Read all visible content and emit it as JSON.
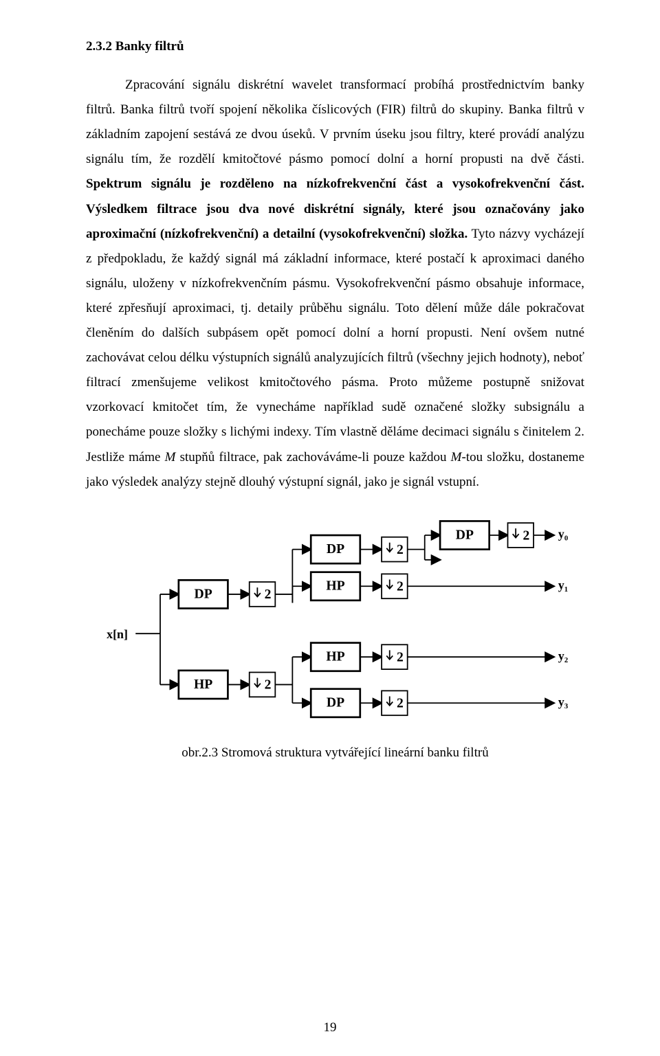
{
  "page": {
    "number": "19"
  },
  "section": {
    "heading": "2.3.2 Banky filtrů",
    "body_html": "Zpracování signálu diskrétní wavelet transformací probíhá prostřednictvím banky filtrů. Banka filtrů tvoří spojení několika číslicových (FIR) filtrů do skupiny. Banka filtrů v základním zapojení sestává ze dvou úseků. V prvním úseku jsou filtry, které provádí analýzu signálu tím, že rozdělí kmitočtové pásmo pomocí dolní a horní propusti na dvě části. <span class=\"bold\">Spektrum signálu je rozděleno na nízkofrekvenční část a vysokofrekvenční část. Výsledkem filtrace jsou dva nové diskrétní signály, které jsou označovány jako aproximační (nízkofrekvenční) a detailní (vysokofrekvenční) složka.</span> Tyto názvy vycházejí z předpokladu, že každý signál má základní informace, které postačí k aproximaci daného signálu, uloženy v nízkofrekvenčním pásmu. Vysokofrekvenční pásmo obsahuje informace, které zpřesňují aproximaci, tj. detaily průběhu signálu. Toto dělení může dále pokračovat členěním do dalších subpásem opět pomocí dolní a horní propusti. Není ovšem nutné zachovávat celou délku výstupních signálů analyzujících filtrů (všechny jejich hodnoty), neboť filtrací zmenšujeme velikost kmitočtového pásma. Proto můžeme postupně snižovat vzorkovací kmitočet tím, že vynecháme například sudě označené složky subsignálu a ponecháme pouze složky s lichými indexy. Tím vlastně děláme decimaci signálu s činitelem 2. Jestliže máme <i>M</i> stupňů filtrace, pak zachováváme-li pouze každou <i>M</i>-tou složku, dostaneme jako výsledek analýzy stejně dlouhý výstupní signál, jako je signál vstupní."
  },
  "figure": {
    "caption": "obr.2.3 Stromová struktura vytvářející lineární banku filtrů",
    "input_label": "x[n]",
    "outputs": [
      "y₀ [n]",
      "y₁ [n]",
      "y₂ [n]",
      "y₃ [n]"
    ],
    "box_labels": {
      "lowpass": "DP",
      "highpass": "HP",
      "decimate": "2"
    },
    "colors": {
      "stroke": "#000000",
      "fill": "#ffffff",
      "background": "#ffffff"
    },
    "stroke_width_outer": 3,
    "stroke_width_inner": 2,
    "tree": {
      "type": "filter-bank-tree",
      "levels": 3,
      "structure": "at each level: input → [DP↓2 → next level, HP↓2 → output]; last DP branch also splits into DP↓2 and HP↓2 (and one extra DP↓2 terminal)"
    }
  }
}
